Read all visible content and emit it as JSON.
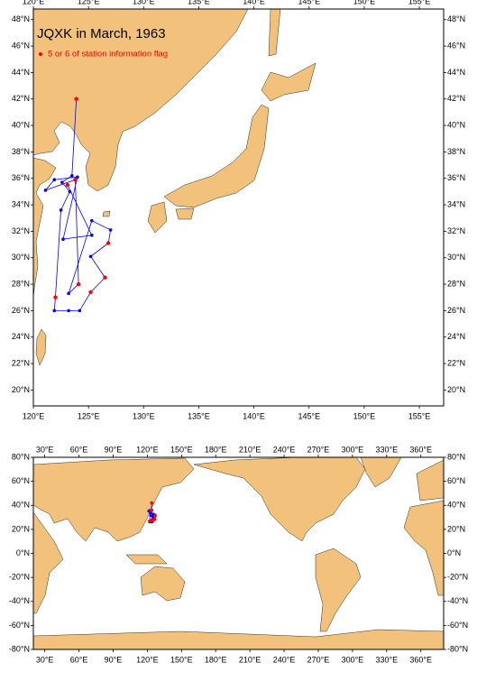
{
  "chart_data": [
    {
      "type": "map",
      "title": "JQXK in March, 1963",
      "xlim": [
        120,
        157.2
      ],
      "ylim": [
        18.8,
        48.8
      ],
      "xticks": [
        {
          "value": 120,
          "label": "120°E"
        },
        {
          "value": 125,
          "label": "125°E"
        },
        {
          "value": 130,
          "label": "130°E"
        },
        {
          "value": 135,
          "label": "135°E"
        },
        {
          "value": 140,
          "label": "140°E"
        },
        {
          "value": 145,
          "label": "145°E"
        },
        {
          "value": 150,
          "label": "150°E"
        },
        {
          "value": 155,
          "label": "155°E"
        }
      ],
      "yticks": [
        {
          "value": 20,
          "label": "20°N"
        },
        {
          "value": 22,
          "label": "22°N"
        },
        {
          "value": 24,
          "label": "24°N"
        },
        {
          "value": 26,
          "label": "26°N"
        },
        {
          "value": 28,
          "label": "28°N"
        },
        {
          "value": 30,
          "label": "30°N"
        },
        {
          "value": 32,
          "label": "32°N"
        },
        {
          "value": 34,
          "label": "34°N"
        },
        {
          "value": 36,
          "label": "36°N"
        },
        {
          "value": 38,
          "label": "38°N"
        },
        {
          "value": 40,
          "label": "40°N"
        },
        {
          "value": 42,
          "label": "42°N"
        },
        {
          "value": 44,
          "label": "44°N"
        },
        {
          "value": 46,
          "label": "46°N"
        },
        {
          "value": 48,
          "label": "48°N"
        }
      ],
      "track": {
        "color": "#0000ff",
        "x": [
          123.9,
          123.5,
          122.6,
          123.3,
          122.5,
          122.0,
          121.9,
          123.2,
          124.2,
          125.2,
          126.5,
          125.2,
          126.8,
          127.0,
          125.3,
          123.2,
          124.1,
          123.8,
          121.1,
          121.9,
          124.0,
          122.7,
          125.3,
          123.1
        ],
        "y": [
          42.0,
          36.2,
          35.7,
          35.0,
          33.6,
          27.0,
          26.0,
          26.0,
          26.0,
          27.4,
          28.5,
          30.1,
          31.1,
          32.1,
          32.8,
          27.3,
          28.0,
          35.9,
          35.1,
          35.9,
          36.1,
          31.4,
          31.7,
          35.5
        ]
      },
      "flagged": {
        "name": "5 or 6 of station information flag",
        "color": "#ff0000",
        "x": [
          123.9,
          122.0,
          125.2,
          126.5,
          126.8,
          124.1,
          123.8,
          123.1
        ],
        "y": [
          42.0,
          27.0,
          27.4,
          28.5,
          31.1,
          28.0,
          35.9,
          35.5
        ]
      }
    },
    {
      "type": "map",
      "xlim": [
        20,
        380
      ],
      "ylim": [
        -80,
        80
      ],
      "xticks": [
        {
          "value": 30,
          "label": "30°E"
        },
        {
          "value": 60,
          "label": "60°E"
        },
        {
          "value": 90,
          "label": "90°E"
        },
        {
          "value": 120,
          "label": "120°E"
        },
        {
          "value": 150,
          "label": "150°E"
        },
        {
          "value": 180,
          "label": "180°E"
        },
        {
          "value": 210,
          "label": "210°E"
        },
        {
          "value": 240,
          "label": "240°E"
        },
        {
          "value": 270,
          "label": "270°E"
        },
        {
          "value": 300,
          "label": "300°E"
        },
        {
          "value": 330,
          "label": "330°E"
        },
        {
          "value": 360,
          "label": "360°E"
        }
      ],
      "yticks": [
        {
          "value": -80,
          "label": "-80°N"
        },
        {
          "value": -60,
          "label": "-60°N"
        },
        {
          "value": -40,
          "label": "-40°N"
        },
        {
          "value": -20,
          "label": "-20°N"
        },
        {
          "value": 0,
          "label": "0°N"
        },
        {
          "value": 20,
          "label": "20°N"
        },
        {
          "value": 40,
          "label": "40°N"
        },
        {
          "value": 60,
          "label": "60°N"
        },
        {
          "value": 80,
          "label": "80°N"
        }
      ]
    }
  ]
}
